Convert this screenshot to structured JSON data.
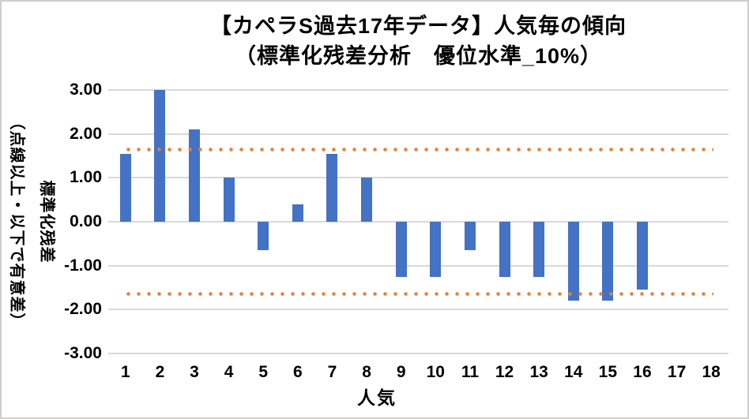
{
  "chart_data": {
    "type": "bar",
    "title": [
      "【カペラS過去17年データ】人気毎の傾向",
      "（標準化残差分析　優位水準_10%）"
    ],
    "xlabel": "人気",
    "ylabel": [
      "標準化残差",
      "（点線以上・以下で有意差）"
    ],
    "categories": [
      "1",
      "2",
      "3",
      "4",
      "5",
      "6",
      "7",
      "8",
      "9",
      "10",
      "11",
      "12",
      "13",
      "14",
      "15",
      "16",
      "17",
      "18"
    ],
    "values": [
      1.55,
      3.0,
      2.1,
      1.0,
      -0.65,
      0.4,
      1.55,
      1.0,
      -1.25,
      -1.25,
      -0.65,
      -1.25,
      -1.25,
      -1.8,
      -1.8,
      -1.55,
      null,
      null
    ],
    "y_tick_labels": [
      "3.00",
      "2.00",
      "1.00",
      "0.00",
      "-1.00",
      "-2.00",
      "-3.00"
    ],
    "y_tick_values": [
      3,
      2,
      1,
      0,
      -1,
      -2,
      -3
    ],
    "ylim": [
      -3,
      3
    ],
    "thresholds": [
      1.65,
      -1.65
    ],
    "grid": true,
    "legend": false,
    "colors": {
      "bar": "#4472C4",
      "threshold_dotted": "#ED7D31",
      "gridline": "#D9D9D9",
      "text": "#000000",
      "frame": "#CFCECD"
    }
  }
}
